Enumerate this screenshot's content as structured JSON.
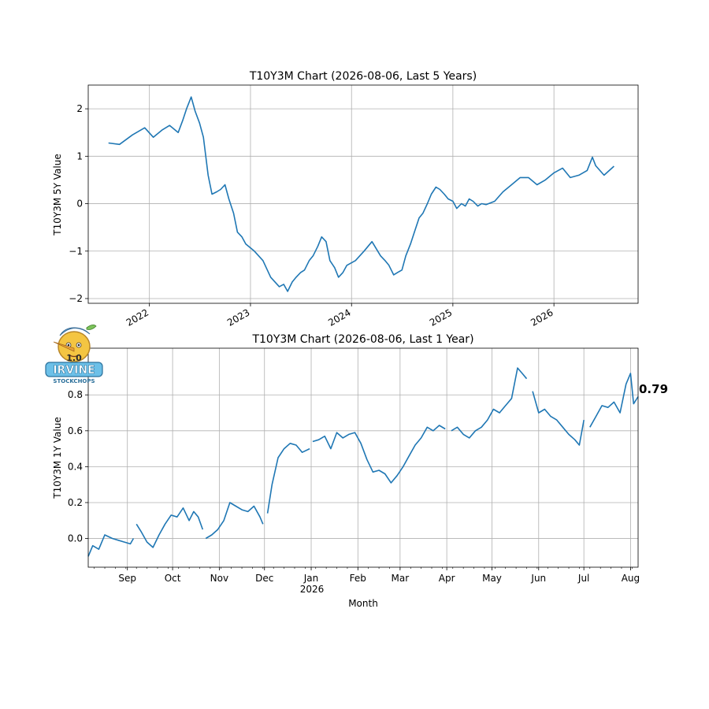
{
  "chart_data": [
    {
      "type": "line",
      "title": "T10Y3M Chart (2026-08-06, Last 5 Years)",
      "xlabel": "",
      "ylabel": "T10Y3M 5Y Value",
      "x_tick_labels": [
        "2022",
        "2023",
        "2024",
        "2025",
        "2026"
      ],
      "y_ticks": [
        -2,
        -1,
        0,
        1,
        2
      ],
      "xlim": [
        "2021-05-25",
        "2026-11-01"
      ],
      "ylim": [
        -2.1,
        2.5
      ],
      "grid": true,
      "color": "#1f77b4",
      "x": [
        "2021-08-06",
        "2021-09-15",
        "2021-11-01",
        "2021-12-15",
        "2022-01-15",
        "2022-02-15",
        "2022-03-15",
        "2022-04-15",
        "2022-05-01",
        "2022-05-15",
        "2022-06-01",
        "2022-06-15",
        "2022-07-01",
        "2022-07-15",
        "2022-08-01",
        "2022-08-15",
        "2022-09-01",
        "2022-09-15",
        "2022-10-01",
        "2022-10-15",
        "2022-11-01",
        "2022-11-15",
        "2022-12-01",
        "2022-12-15",
        "2023-01-15",
        "2023-02-15",
        "2023-03-15",
        "2023-04-15",
        "2023-05-01",
        "2023-05-15",
        "2023-06-01",
        "2023-06-15",
        "2023-07-01",
        "2023-07-15",
        "2023-08-01",
        "2023-08-15",
        "2023-09-01",
        "2023-09-15",
        "2023-10-01",
        "2023-10-15",
        "2023-11-01",
        "2023-11-15",
        "2023-12-01",
        "2023-12-15",
        "2024-01-15",
        "2024-02-15",
        "2024-03-15",
        "2024-04-15",
        "2024-05-01",
        "2024-05-15",
        "2024-06-01",
        "2024-06-15",
        "2024-07-01",
        "2024-07-15",
        "2024-08-01",
        "2024-08-15",
        "2024-09-01",
        "2024-09-15",
        "2024-10-01",
        "2024-10-15",
        "2024-11-01",
        "2024-11-15",
        "2024-12-01",
        "2024-12-15",
        "2025-01-01",
        "2025-01-15",
        "2025-02-01",
        "2025-02-15",
        "2025-03-01",
        "2025-03-15",
        "2025-04-01",
        "2025-04-15",
        "2025-05-01",
        "2025-06-01",
        "2025-07-01",
        "2025-08-01",
        "2025-09-01",
        "2025-10-01",
        "2025-11-01",
        "2025-12-01",
        "2026-01-01",
        "2026-02-01",
        "2026-03-01",
        "2026-04-01",
        "2026-05-01",
        "2026-05-20",
        "2026-06-01",
        "2026-07-01",
        "2026-08-06"
      ],
      "values": [
        1.28,
        1.25,
        1.45,
        1.6,
        1.4,
        1.55,
        1.65,
        1.5,
        1.75,
        2.0,
        2.25,
        1.95,
        1.7,
        1.4,
        0.6,
        0.2,
        0.25,
        0.3,
        0.4,
        0.1,
        -0.2,
        -0.6,
        -0.7,
        -0.85,
        -1.0,
        -1.2,
        -1.55,
        -1.75,
        -1.7,
        -1.85,
        -1.65,
        -1.55,
        -1.45,
        -1.4,
        -1.2,
        -1.1,
        -0.9,
        -0.7,
        -0.8,
        -1.2,
        -1.35,
        -1.55,
        -1.45,
        -1.3,
        -1.2,
        -1.0,
        -0.8,
        -1.1,
        -1.2,
        -1.3,
        -1.5,
        -1.45,
        -1.4,
        -1.1,
        -0.85,
        -0.6,
        -0.3,
        -0.2,
        0.0,
        0.2,
        0.35,
        0.3,
        0.2,
        0.1,
        0.05,
        -0.1,
        0.0,
        -0.05,
        0.1,
        0.05,
        -0.05,
        0.0,
        -0.02,
        0.05,
        0.25,
        0.4,
        0.55,
        0.55,
        0.4,
        0.5,
        0.65,
        0.75,
        0.55,
        0.6,
        0.7,
        0.98,
        0.8,
        0.6,
        0.79
      ]
    },
    {
      "type": "line",
      "title": "T10Y3M Chart (2026-08-06, Last 1 Year)",
      "xlabel": "Month",
      "ylabel": "T10Y3M 1Y Value",
      "x_tick_labels": [
        "Sep",
        "Oct",
        "Nov",
        "Dec",
        "Jan",
        "Feb",
        "Mar",
        "Apr",
        "May",
        "Jun",
        "Jul",
        "Aug"
      ],
      "x_year_label": "2026",
      "y_ticks": [
        0.0,
        0.2,
        0.4,
        0.6,
        0.8
      ],
      "y_tick_labels": [
        "0.0",
        "0.2",
        "0.4",
        "0.6",
        "0.8"
      ],
      "xlim": [
        "2025-08-06",
        "2026-08-06"
      ],
      "ylim": [
        -0.16,
        1.06
      ],
      "grid": true,
      "color": "#1f77b4",
      "last_value_label": "0.79",
      "series": [
        {
          "x": [
            "2025-08-06",
            "2025-08-09",
            "2025-08-13",
            "2025-08-17",
            "2025-08-22",
            "2025-08-26",
            "2025-08-30",
            "2025-09-03",
            "2025-09-05"
          ],
          "values": [
            -0.1,
            -0.04,
            -0.06,
            0.02,
            0.0,
            -0.01,
            -0.02,
            -0.03,
            0.0
          ]
        },
        {
          "x": [
            "2025-09-07",
            "2025-09-10",
            "2025-09-14",
            "2025-09-18",
            "2025-09-22",
            "2025-09-26",
            "2025-09-30",
            "2025-10-04",
            "2025-10-08",
            "2025-10-12",
            "2025-10-15",
            "2025-10-18",
            "2025-10-21"
          ],
          "values": [
            0.08,
            0.04,
            -0.02,
            -0.05,
            0.02,
            0.08,
            0.13,
            0.12,
            0.17,
            0.1,
            0.15,
            0.12,
            0.05
          ]
        },
        {
          "x": [
            "2025-10-23",
            "2025-10-27",
            "2025-10-31",
            "2025-11-04",
            "2025-11-08",
            "2025-11-12",
            "2025-11-16",
            "2025-11-20",
            "2025-11-24",
            "2025-11-28",
            "2025-11-30"
          ],
          "values": [
            0.0,
            0.02,
            0.05,
            0.1,
            0.2,
            0.18,
            0.16,
            0.15,
            0.18,
            0.12,
            0.08
          ]
        },
        {
          "x": [
            "2025-12-03",
            "2025-12-06",
            "2025-12-10",
            "2025-12-14",
            "2025-12-18",
            "2025-12-22",
            "2025-12-26",
            "2025-12-31"
          ],
          "values": [
            0.14,
            0.3,
            0.45,
            0.5,
            0.53,
            0.52,
            0.48,
            0.5
          ]
        },
        {
          "x": [
            "2026-01-02",
            "2026-01-06",
            "2026-01-10",
            "2026-01-14",
            "2026-01-18",
            "2026-01-22",
            "2026-01-26",
            "2026-01-30",
            "2026-02-03",
            "2026-02-07",
            "2026-02-11",
            "2026-02-15",
            "2026-02-19",
            "2026-02-23",
            "2026-02-27",
            "2026-03-03",
            "2026-03-07",
            "2026-03-11",
            "2026-03-15",
            "2026-03-19",
            "2026-03-23",
            "2026-03-27",
            "2026-03-31"
          ],
          "values": [
            0.54,
            0.55,
            0.57,
            0.5,
            0.59,
            0.56,
            0.58,
            0.59,
            0.53,
            0.44,
            0.37,
            0.38,
            0.36,
            0.31,
            0.35,
            0.4,
            0.46,
            0.52,
            0.56,
            0.62,
            0.6,
            0.63,
            0.61
          ]
        },
        {
          "x": [
            "2026-04-04",
            "2026-04-08",
            "2026-04-12",
            "2026-04-16",
            "2026-04-20",
            "2026-04-24",
            "2026-04-28",
            "2026-05-02",
            "2026-05-06",
            "2026-05-10",
            "2026-05-14",
            "2026-05-18",
            "2026-05-21",
            "2026-05-24"
          ],
          "values": [
            0.6,
            0.62,
            0.58,
            0.56,
            0.6,
            0.62,
            0.66,
            0.72,
            0.7,
            0.74,
            0.78,
            0.95,
            0.92,
            0.89
          ]
        },
        {
          "x": [
            "2026-05-28",
            "2026-06-01",
            "2026-06-05",
            "2026-06-09",
            "2026-06-13",
            "2026-06-17",
            "2026-06-21",
            "2026-06-25",
            "2026-06-28",
            "2026-07-01"
          ],
          "values": [
            0.82,
            0.7,
            0.72,
            0.68,
            0.66,
            0.62,
            0.58,
            0.55,
            0.52,
            0.66
          ]
        },
        {
          "x": [
            "2026-07-05",
            "2026-07-09",
            "2026-07-13",
            "2026-07-17",
            "2026-07-21",
            "2026-07-25",
            "2026-07-29",
            "2026-08-01",
            "2026-08-03",
            "2026-08-06"
          ],
          "values": [
            0.62,
            0.68,
            0.74,
            0.73,
            0.76,
            0.7,
            0.86,
            0.92,
            0.75,
            0.79
          ]
        }
      ]
    }
  ]
}
